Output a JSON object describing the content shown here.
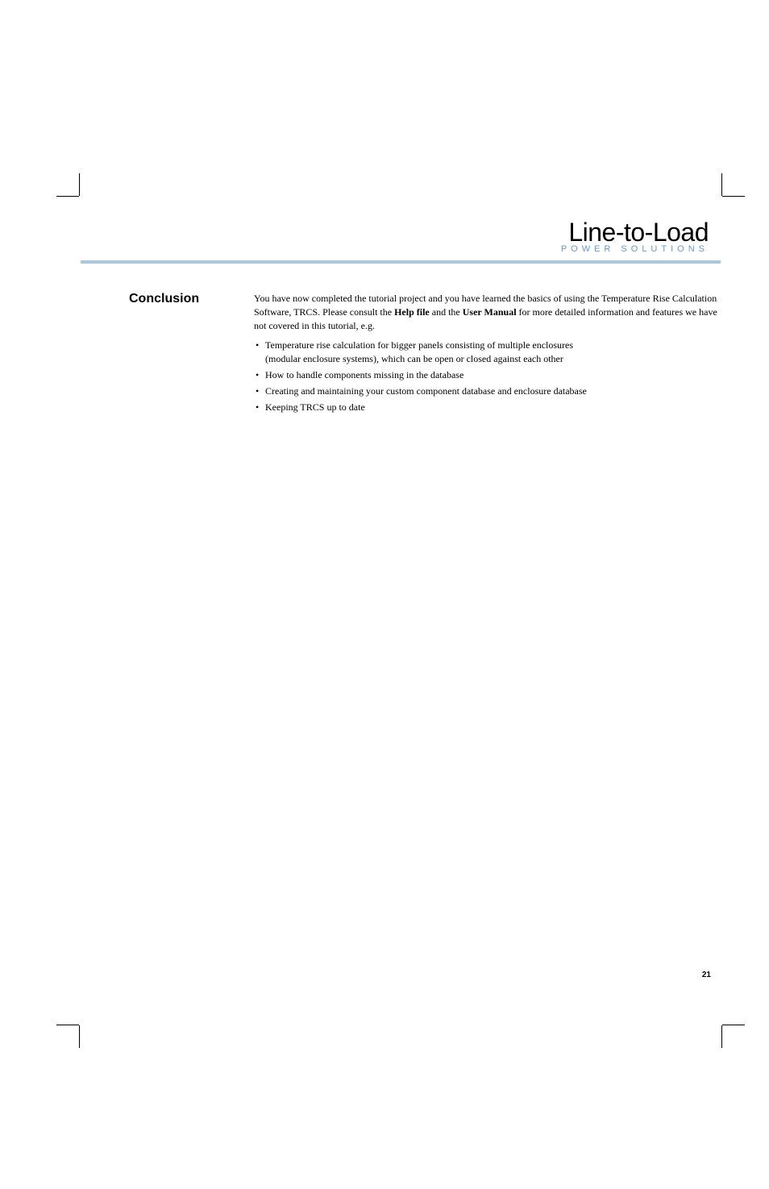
{
  "logo": {
    "main": "Line-to-Load",
    "sub": "POWER SOLUTIONS",
    "sub_color": "#6699cc"
  },
  "header_rule_color": "#a8c8e0",
  "section": {
    "label": "Conclusion",
    "intro_part1": "You have now completed the tutorial project and you have learned the basics of using the Temperature Rise Calculation Software, TRCS. Please consult the ",
    "intro_bold1": "Help file",
    "intro_part2": " and the ",
    "intro_bold2": "User Manual",
    "intro_part3": " for more detailed information and features we have not covered in this tutorial, e.g.",
    "bullets": [
      {
        "line1": "Temperature rise calculation for bigger panels consisting of multiple enclosures",
        "line2": "(modular enclosure systems), which can be open or closed against each other"
      },
      {
        "line1": "How to handle components missing in the database"
      },
      {
        "line1": "Creating and maintaining your custom component database and enclosure database"
      },
      {
        "line1": "Keeping TRCS up to date"
      }
    ]
  },
  "page_number": "21",
  "typography": {
    "section_label_fontsize": 16,
    "body_fontsize": 12,
    "logo_main_fontsize": 32,
    "logo_sub_fontsize": 11,
    "page_number_fontsize": 10
  },
  "colors": {
    "background": "#ffffff",
    "text": "#000000",
    "crop_marks": "#000000"
  }
}
